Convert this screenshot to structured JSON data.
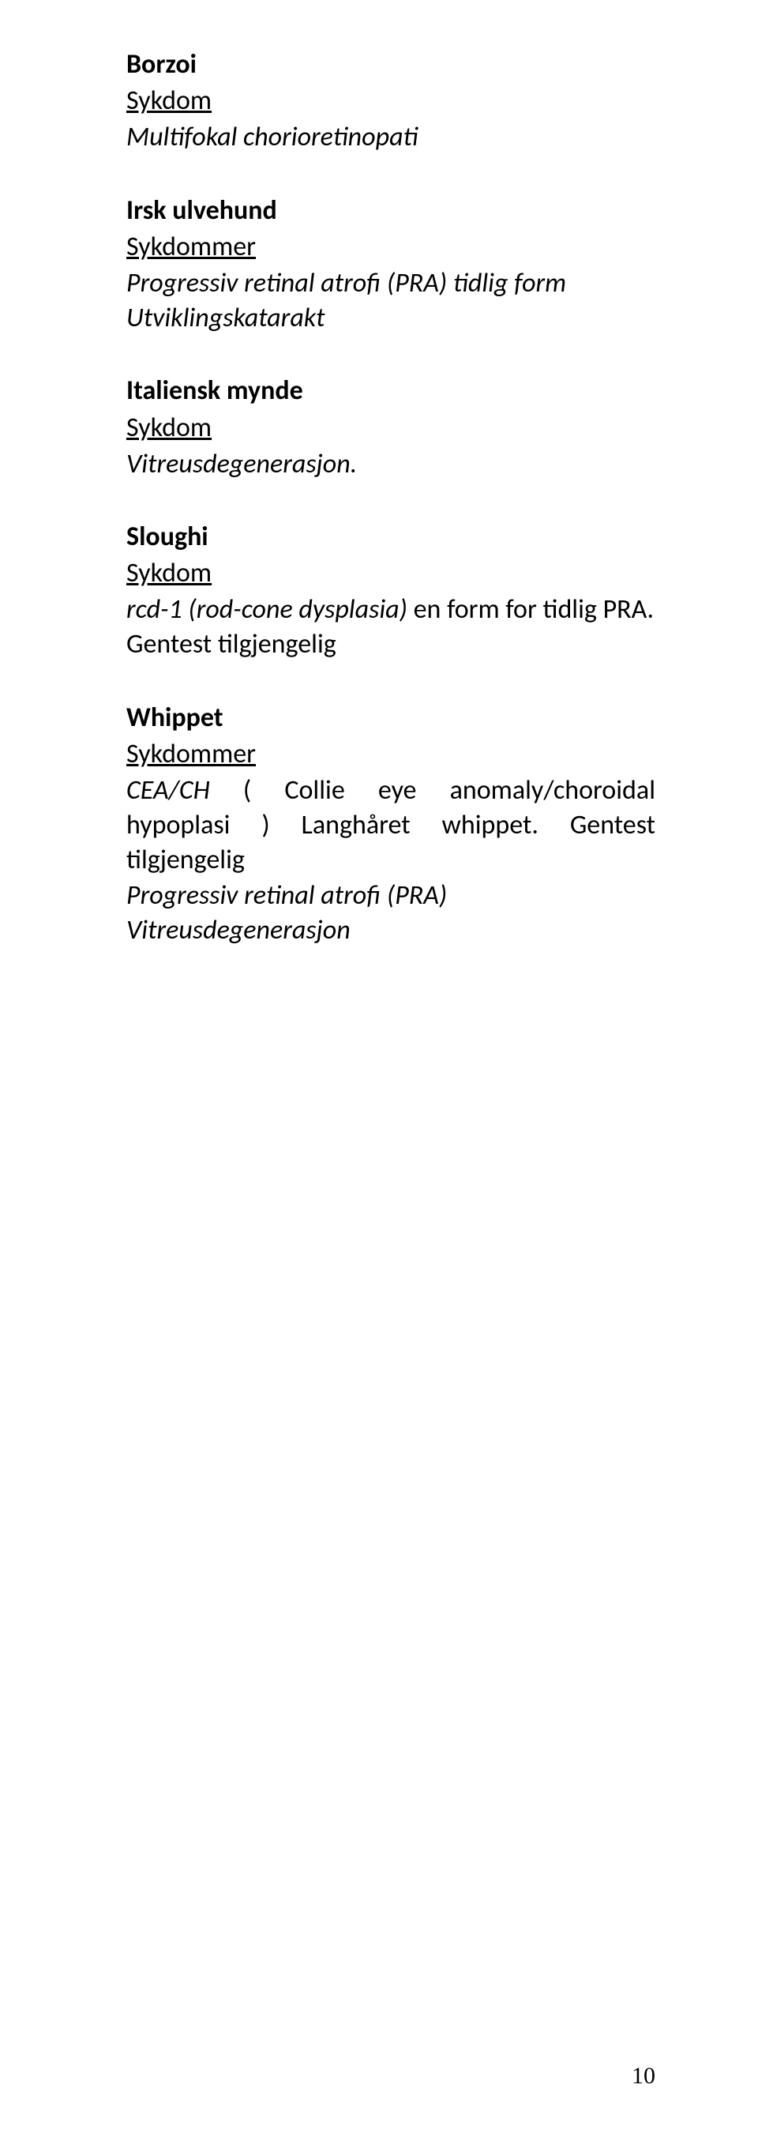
{
  "sections": {
    "borzoi": {
      "breed": "Borzoi",
      "header": "Sykdom",
      "diseases": [
        "Multifokal chorioretinopati"
      ]
    },
    "irsk": {
      "breed": "Irsk ulvehund",
      "header": "Sykdommer",
      "line1": "Progressiv retinal atrofi (PRA) tidlig form",
      "line2": "Utviklingskatarakt"
    },
    "italiensk": {
      "breed": "Italiensk mynde",
      "header": "Sykdom",
      "diseases": [
        "Vitreusdegenerasjon."
      ]
    },
    "sloughi": {
      "breed": "Sloughi",
      "header": "Sykdom",
      "line1a": "rcd-1 (rod-cone dysplasia) ",
      "line1b": "en form for tidlig PRA.",
      "line2": "Gentest tilgjengelig"
    },
    "whippet": {
      "breed": "Whippet",
      "header": "Sykdommer",
      "line1a": "CEA/CH",
      "line1b": " ( Collie eye anomaly/choroidal hypoplasi ) ",
      "line1c": "Langhåret whippet. ",
      "line1d": "Gentest tilgjengelig",
      "line2": "Progressiv retinal atrofi (PRA)",
      "line3": "Vitreusdegenerasjon"
    }
  },
  "pageNumber": "10"
}
